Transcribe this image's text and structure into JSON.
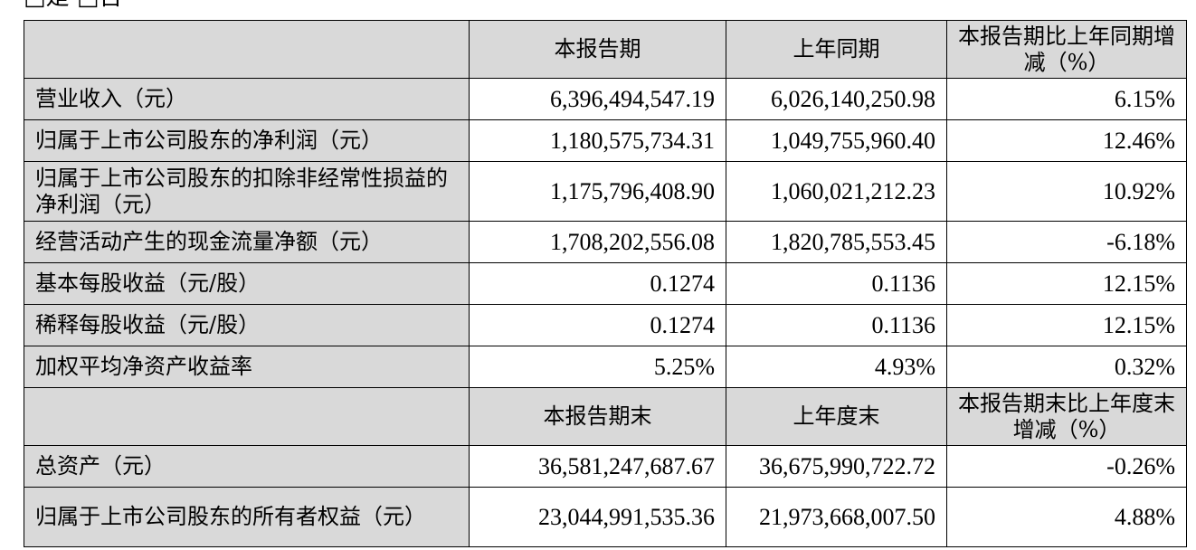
{
  "top_fragment": "□是 □否",
  "table": {
    "header1": {
      "col1": "",
      "col2": "本报告期",
      "col3": "上年同期",
      "col4": "本报告期比上年同期增减（%）"
    },
    "rows1": [
      {
        "label": "营业收入（元）",
        "current": "6,396,494,547.19",
        "prior": "6,026,140,250.98",
        "change": "6.15%"
      },
      {
        "label": "归属于上市公司股东的净利润（元）",
        "current": "1,180,575,734.31",
        "prior": "1,049,755,960.40",
        "change": "12.46%"
      },
      {
        "label": "归属于上市公司股东的扣除非经常性损益的净利润（元）",
        "current": "1,175,796,408.90",
        "prior": "1,060,021,212.23",
        "change": "10.92%"
      },
      {
        "label": "经营活动产生的现金流量净额（元）",
        "current": "1,708,202,556.08",
        "prior": "1,820,785,553.45",
        "change": "-6.18%"
      },
      {
        "label": "基本每股收益（元/股）",
        "current": "0.1274",
        "prior": "0.1136",
        "change": "12.15%"
      },
      {
        "label": "稀释每股收益（元/股）",
        "current": "0.1274",
        "prior": "0.1136",
        "change": "12.15%"
      },
      {
        "label": "加权平均净资产收益率",
        "current": "5.25%",
        "prior": "4.93%",
        "change": "0.32%"
      }
    ],
    "header2": {
      "col1": "",
      "col2": "本报告期末",
      "col3": "上年度末",
      "col4": "本报告期末比上年度末增减（%）"
    },
    "rows2": [
      {
        "label": "总资产（元）",
        "current": "36,581,247,687.67",
        "prior": "36,675,990,722.72",
        "change": "-0.26%"
      },
      {
        "label": "归属于上市公司股东的所有者权益（元）",
        "current": "23,044,991,535.36",
        "prior": "21,973,668,007.50",
        "change": "4.88%"
      }
    ]
  }
}
